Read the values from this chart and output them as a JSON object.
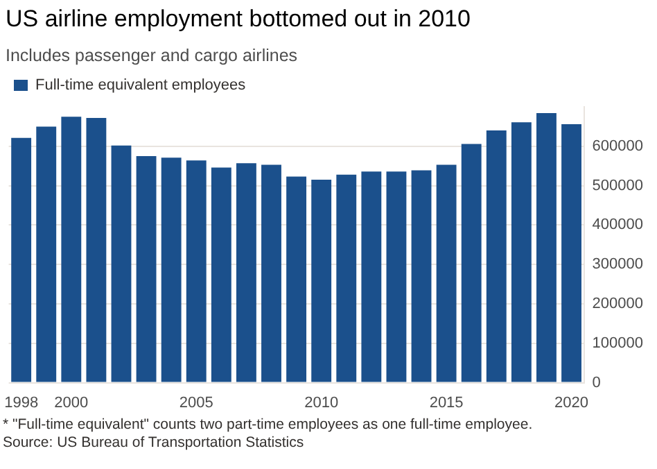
{
  "chart_data": {
    "type": "bar",
    "title": "US airline employment bottomed out in 2010",
    "subtitle": "Includes passenger and cargo airlines",
    "categories": [
      "1998",
      null,
      "2000",
      null,
      null,
      null,
      null,
      "2005",
      null,
      null,
      null,
      null,
      "2010",
      null,
      null,
      null,
      null,
      "2015",
      null,
      null,
      null,
      null,
      "2020"
    ],
    "series": [
      {
        "name": "Full-time equivalent employees",
        "color": "#1b508c",
        "values": [
          621000,
          650000,
          675000,
          672000,
          602000,
          575000,
          571000,
          564000,
          546000,
          557000,
          553000,
          523000,
          515000,
          528000,
          536000,
          536000,
          539000,
          553000,
          606000,
          640000,
          661000,
          684000,
          656000
        ]
      }
    ],
    "ylim": [
      0,
      700000
    ],
    "yticks": [
      0,
      100000,
      200000,
      300000,
      400000,
      500000,
      600000
    ],
    "grid": "y",
    "legend": "top left",
    "annotations": [
      "* \"Full-time equivalent\" counts two part-time employees as one full-time employee.",
      "Source: US Bureau of Transportation Statistics"
    ]
  }
}
